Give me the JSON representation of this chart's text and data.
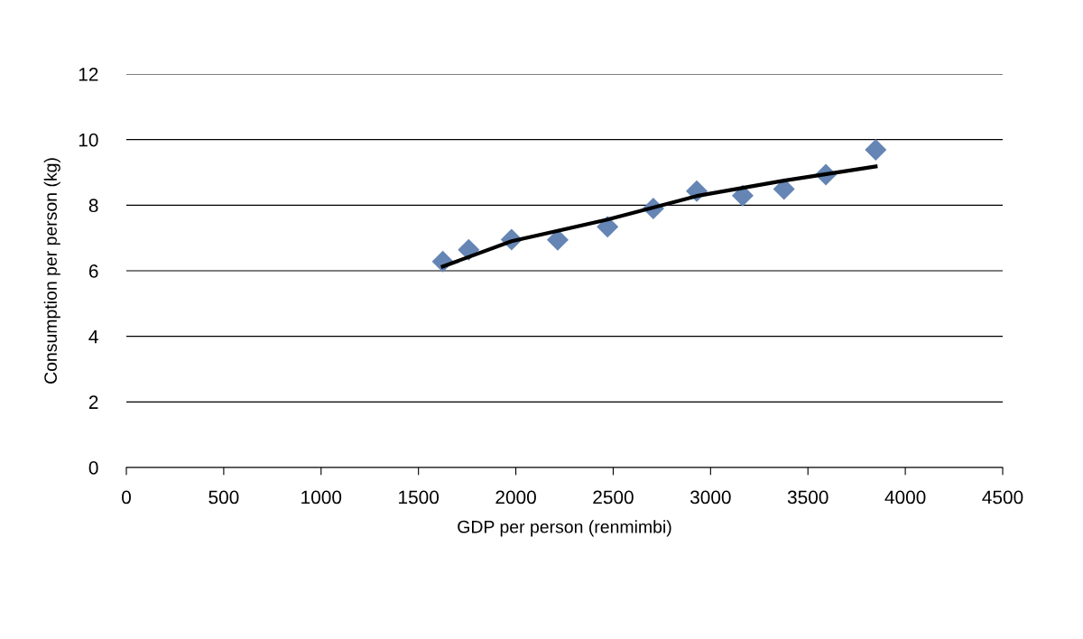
{
  "chart_data": {
    "type": "scatter",
    "xlabel": "GDP per person (renmimbi)",
    "ylabel": "Consumption per person (kg)",
    "xlim": [
      0,
      4500
    ],
    "xticks": [
      0,
      500,
      1000,
      1500,
      2000,
      2500,
      3000,
      3500,
      4000,
      4500
    ],
    "ylim": [
      0,
      12
    ],
    "yticks": [
      0,
      2,
      4,
      6,
      8,
      10,
      12
    ],
    "grid": "y",
    "marker": "diamond",
    "series": [
      {
        "color": "#6585b5",
        "x": [
          1625,
          1758,
          1978,
          2215,
          2471,
          2706,
          2929,
          3165,
          3377,
          3592,
          3848
        ],
        "values": [
          6.28,
          6.64,
          6.95,
          6.94,
          7.34,
          7.9,
          8.43,
          8.29,
          8.49,
          8.93,
          9.69
        ]
      },
      {
        "type": "line",
        "color": "#000000",
        "marker": "none",
        "x": [
          1625,
          1978,
          2471,
          2929,
          3377,
          3848
        ],
        "values": [
          6.13,
          6.9,
          7.56,
          8.28,
          8.75,
          9.18
        ]
      }
    ]
  }
}
